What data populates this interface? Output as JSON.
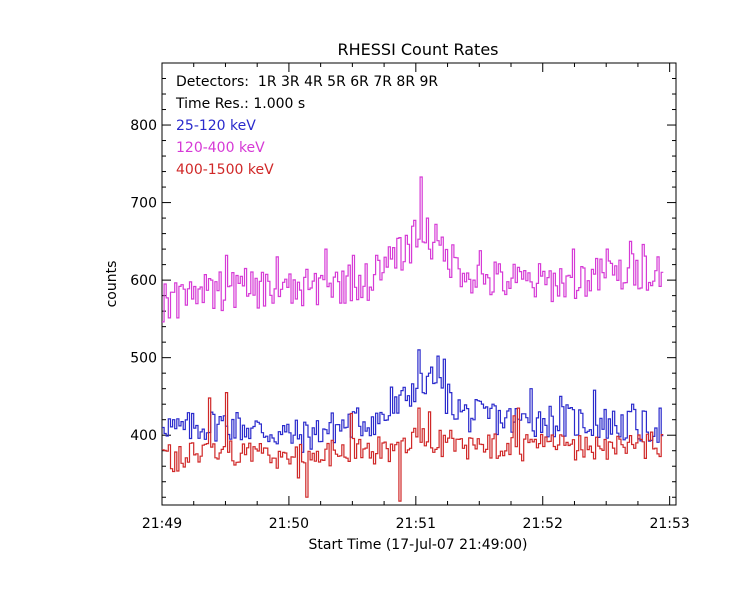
{
  "chart_data": {
    "type": "line",
    "title": "RHESSI Count Rates",
    "xlabel": "Start Time (17-Jul-07 21:49:00)",
    "ylabel": "counts",
    "x_ticks": [
      "21:49",
      "21:50",
      "21:51",
      "21:52",
      "21:53"
    ],
    "y_ticks": [
      400,
      500,
      600,
      700,
      800
    ],
    "xlim_min": [
      0,
      4.05
    ],
    "ylim": [
      310,
      880
    ],
    "annotations": [
      "Detectors:  1R 3R 4R 5R 6R 7R 8R 9R",
      "Time Res.: 1.000 s"
    ],
    "time_resolution_s": 1,
    "series": [
      {
        "name": "25-120 keV",
        "color": "#2a2acc",
        "keyframes": [
          [
            0,
            420
          ],
          [
            0.1,
            405
          ],
          [
            0.3,
            412
          ],
          [
            0.5,
            415
          ],
          [
            0.8,
            405
          ],
          [
            1.0,
            400
          ],
          [
            1.1,
            398
          ],
          [
            1.3,
            408
          ],
          [
            1.5,
            415
          ],
          [
            1.75,
            422
          ],
          [
            1.85,
            435
          ],
          [
            1.95,
            455
          ],
          [
            2.0,
            465
          ],
          [
            2.05,
            460
          ],
          [
            2.12,
            470
          ],
          [
            2.2,
            455
          ],
          [
            2.3,
            438
          ],
          [
            2.4,
            425
          ],
          [
            2.6,
            422
          ],
          [
            2.8,
            418
          ],
          [
            3.0,
            420
          ],
          [
            3.2,
            418
          ],
          [
            3.5,
            415
          ],
          [
            3.8,
            410
          ],
          [
            3.95,
            412
          ]
        ],
        "spikes": [
          [
            1.04,
            400
          ],
          [
            1.26,
            408
          ],
          [
            1.73,
            427
          ],
          [
            1.8,
            462
          ],
          [
            2.02,
            510
          ],
          [
            2.08,
            476
          ],
          [
            2.1,
            480
          ],
          [
            2.17,
            502
          ],
          [
            2.22,
            498
          ],
          [
            2.6,
            440
          ],
          [
            2.9,
            460
          ],
          [
            3.14,
            450
          ],
          [
            3.4,
            458
          ],
          [
            3.7,
            440
          ],
          [
            3.92,
            435
          ]
        ],
        "jitter": 22
      },
      {
        "name": "120-400 keV",
        "color": "#d63ad6",
        "keyframes": [
          [
            0,
            570
          ],
          [
            0.2,
            578
          ],
          [
            0.4,
            585
          ],
          [
            0.7,
            590
          ],
          [
            1.0,
            585
          ],
          [
            1.2,
            590
          ],
          [
            1.4,
            595
          ],
          [
            1.6,
            598
          ],
          [
            1.7,
            605
          ],
          [
            1.8,
            620
          ],
          [
            1.9,
            640
          ],
          [
            1.97,
            650
          ],
          [
            2.03,
            665
          ],
          [
            2.1,
            652
          ],
          [
            2.2,
            638
          ],
          [
            2.3,
            622
          ],
          [
            2.45,
            605
          ],
          [
            2.6,
            600
          ],
          [
            2.8,
            598
          ],
          [
            3.0,
            596
          ],
          [
            3.2,
            600
          ],
          [
            3.5,
            605
          ],
          [
            3.8,
            612
          ],
          [
            3.95,
            618
          ]
        ],
        "spikes": [
          [
            0.5,
            632
          ],
          [
            0.9,
            630
          ],
          [
            1.29,
            640
          ],
          [
            1.5,
            632
          ],
          [
            1.69,
            632
          ],
          [
            1.82,
            642
          ],
          [
            1.99,
            677
          ],
          [
            2.04,
            733
          ],
          [
            2.09,
            680
          ],
          [
            2.15,
            672
          ],
          [
            2.5,
            638
          ],
          [
            3.23,
            640
          ],
          [
            3.5,
            640
          ],
          [
            3.68,
            650
          ],
          [
            3.78,
            646
          ],
          [
            3.9,
            630
          ]
        ],
        "jitter": 26
      },
      {
        "name": "400-1500 keV",
        "color": "#d02828",
        "keyframes": [
          [
            0,
            370
          ],
          [
            0.2,
            372
          ],
          [
            0.4,
            375
          ],
          [
            0.6,
            380
          ],
          [
            0.8,
            375
          ],
          [
            1.0,
            372
          ],
          [
            1.2,
            375
          ],
          [
            1.4,
            378
          ],
          [
            1.6,
            380
          ],
          [
            1.8,
            380
          ],
          [
            2.0,
            395
          ],
          [
            2.1,
            392
          ],
          [
            2.3,
            388
          ],
          [
            2.5,
            385
          ],
          [
            2.8,
            382
          ],
          [
            3.0,
            385
          ],
          [
            3.2,
            385
          ],
          [
            3.5,
            384
          ],
          [
            3.8,
            385
          ],
          [
            3.95,
            390
          ]
        ],
        "spikes": [
          [
            0.37,
            448
          ],
          [
            0.5,
            455
          ],
          [
            1.06,
            345
          ],
          [
            1.13,
            320
          ],
          [
            1.48,
            428
          ],
          [
            1.73,
            390
          ],
          [
            1.86,
            315
          ],
          [
            2.02,
            435
          ],
          [
            2.1,
            430
          ],
          [
            2.76,
            425
          ],
          [
            2.8,
            435
          ]
        ],
        "jitter": 18
      }
    ]
  }
}
